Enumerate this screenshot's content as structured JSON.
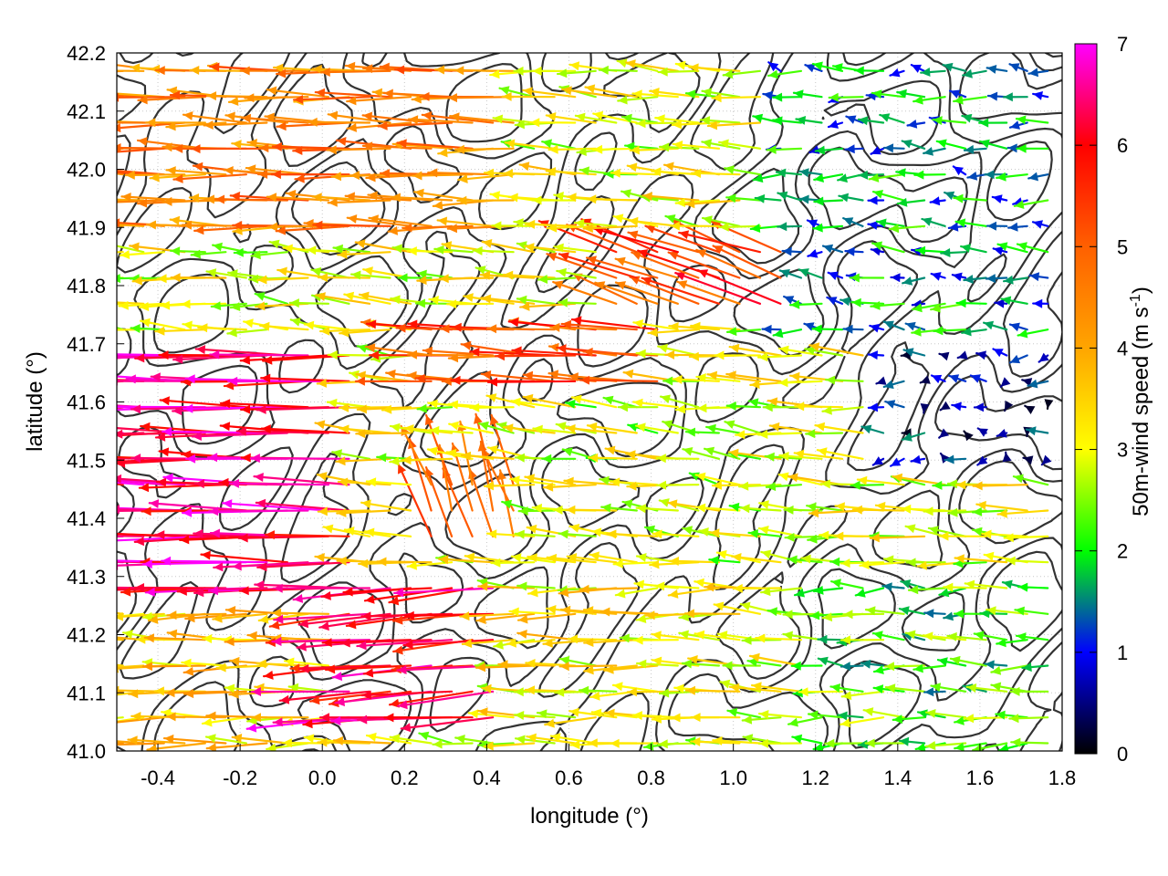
{
  "chart_data": {
    "type": "vector-field",
    "xlabel": "longitude (°)",
    "ylabel": "latitude (°)",
    "xlim": [
      -0.5,
      1.8
    ],
    "ylim": [
      41.0,
      42.2
    ],
    "xticks": [
      "-0.4",
      "-0.2",
      "0.0",
      "0.2",
      "0.4",
      "0.6",
      "0.8",
      "1.0",
      "1.2",
      "1.4",
      "1.6",
      "1.8"
    ],
    "xtick_values": [
      -0.4,
      -0.2,
      0.0,
      0.2,
      0.4,
      0.6,
      0.8,
      1.0,
      1.2,
      1.4,
      1.6,
      1.8
    ],
    "yticks": [
      "41.0",
      "41.1",
      "41.2",
      "41.3",
      "41.4",
      "41.5",
      "41.6",
      "41.7",
      "41.8",
      "41.9",
      "42.0",
      "42.1",
      "42.2"
    ],
    "ytick_values": [
      41.0,
      41.1,
      41.2,
      41.3,
      41.4,
      41.5,
      41.6,
      41.7,
      41.8,
      41.9,
      42.0,
      42.1,
      42.2
    ],
    "grid": true,
    "colorbar": {
      "label": "50m-wind speed (m s",
      "label_superscript": "-1",
      "label_suffix": ")",
      "range": [
        0,
        7
      ],
      "ticks": [
        "0",
        "1",
        "2",
        "3",
        "4",
        "5",
        "6",
        "7"
      ],
      "tick_values": [
        0,
        1,
        2,
        3,
        4,
        5,
        6,
        7
      ],
      "stops": [
        {
          "value": 0,
          "color": "#000000"
        },
        {
          "value": 1,
          "color": "#0000ff"
        },
        {
          "value": 1.5,
          "color": "#008080"
        },
        {
          "value": 2,
          "color": "#00ff00"
        },
        {
          "value": 3,
          "color": "#ffff00"
        },
        {
          "value": 4,
          "color": "#ffa500"
        },
        {
          "value": 5,
          "color": "#ff6000"
        },
        {
          "value": 6,
          "color": "#ff0000"
        },
        {
          "value": 7,
          "color": "#ff00ff"
        }
      ]
    },
    "contour_color": "#333333",
    "wind_regions": [
      {
        "lon": [
          -0.5,
          0.1
        ],
        "lat": [
          41.25,
          41.7
        ],
        "u": -6.5,
        "v": 0.1
      },
      {
        "lon": [
          0.05,
          0.45
        ],
        "lat": [
          41.05,
          41.3
        ],
        "u": -6.2,
        "v": -0.5
      },
      {
        "lon": [
          0.25,
          0.5
        ],
        "lat": [
          41.35,
          41.5
        ],
        "u": -1.5,
        "v": 4.5
      },
      {
        "lon": [
          0.7,
          1.15
        ],
        "lat": [
          41.75,
          41.9
        ],
        "u": -5.0,
        "v": 1.8
      },
      {
        "lon": [
          0.25,
          0.85
        ],
        "lat": [
          41.6,
          41.75
        ],
        "u": -5.2,
        "v": 0.3
      },
      {
        "lon": [
          -0.5,
          0.5
        ],
        "lat": [
          41.9,
          42.2
        ],
        "u": -4.5,
        "v": 0.1
      },
      {
        "lon": [
          0.5,
          1.0
        ],
        "lat": [
          41.05,
          41.3
        ],
        "u": -3.2,
        "v": 0.0
      },
      {
        "lon": [
          1.2,
          1.8
        ],
        "lat": [
          41.0,
          41.3
        ],
        "u": -2.2,
        "v": 0.0
      },
      {
        "lon": [
          1.35,
          1.8
        ],
        "lat": [
          41.5,
          41.7
        ],
        "u": -0.8,
        "v": 0.0
      },
      {
        "lon": [
          0.5,
          1.2
        ],
        "lat": [
          41.3,
          41.6
        ],
        "u": -2.8,
        "v": 0.3
      },
      {
        "lon": [
          -0.5,
          0.2
        ],
        "lat": [
          41.0,
          41.25
        ],
        "u": -3.5,
        "v": 0.0
      },
      {
        "lon": [
          1.1,
          1.8
        ],
        "lat": [
          41.7,
          42.2
        ],
        "u": -1.6,
        "v": 0.1
      },
      {
        "lon": [
          -0.5,
          1.8
        ],
        "lat": [
          41.0,
          42.2
        ],
        "u": -3.0,
        "v": 0.2
      }
    ]
  }
}
